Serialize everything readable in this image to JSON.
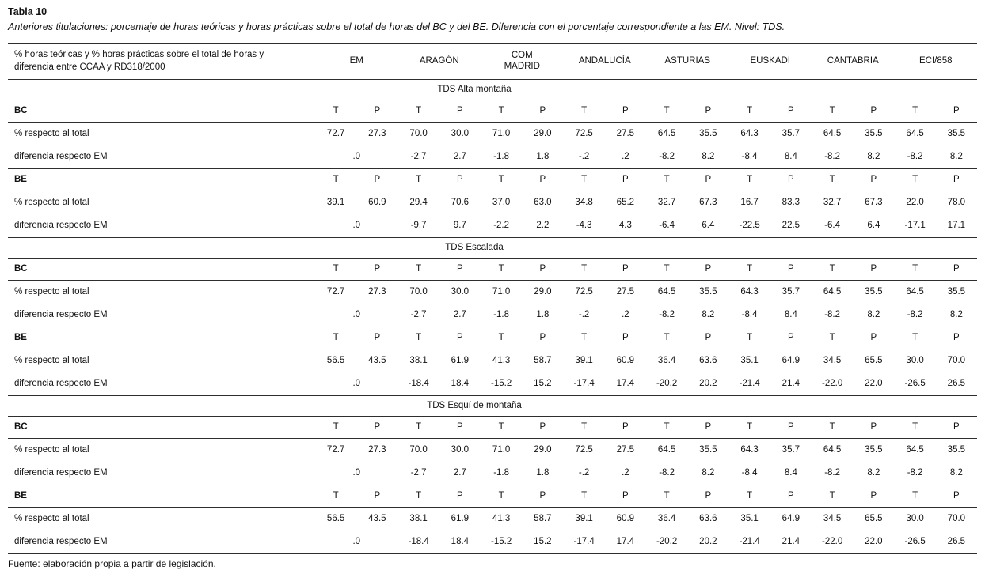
{
  "title": "Tabla 10",
  "subtitle": "Anteriores titulaciones: porcentaje de horas teóricas y horas prácticas sobre el total de horas del BC y del BE. Diferencia con el porcentaje correspondiente a las EM. Nivel: TDS.",
  "header": {
    "label_lines": [
      "% horas teóricas y % horas prácticas sobre el total de horas y",
      "diferencia entre CCAA y RD318/2000"
    ],
    "columns": [
      "EM",
      "ARAGÓN",
      "COM\nMADRID",
      "ANDALUCÍA",
      "ASTURIAS",
      "EUSKADI",
      "CANTABRIA",
      "ECI/858"
    ],
    "subcolumns": [
      "T",
      "P"
    ]
  },
  "row_labels": {
    "pct": "% respecto al total",
    "dif": "diferencia respecto EM"
  },
  "chart_data": {
    "type": "table",
    "sections": [
      {
        "title": "TDS Alta montaña",
        "blocks": [
          {
            "name": "BC",
            "pct": [
              "72.7",
              "27.3",
              "70.0",
              "30.0",
              "71.0",
              "29.0",
              "72.5",
              "27.5",
              "64.5",
              "35.5",
              "64.3",
              "35.7",
              "64.5",
              "35.5",
              "64.5",
              "35.5"
            ],
            "dif": [
              ".0",
              "-2.7",
              "2.7",
              "-1.8",
              "1.8",
              "-.2",
              ".2",
              "-8.2",
              "8.2",
              "-8.4",
              "8.4",
              "-8.2",
              "8.2",
              "-8.2",
              "8.2"
            ]
          },
          {
            "name": "BE",
            "pct": [
              "39.1",
              "60.9",
              "29.4",
              "70.6",
              "37.0",
              "63.0",
              "34.8",
              "65.2",
              "32.7",
              "67.3",
              "16.7",
              "83.3",
              "32.7",
              "67.3",
              "22.0",
              "78.0"
            ],
            "dif": [
              ".0",
              "-9.7",
              "9.7",
              "-2.2",
              "2.2",
              "-4.3",
              "4.3",
              "-6.4",
              "6.4",
              "-22.5",
              "22.5",
              "-6.4",
              "6.4",
              "-17.1",
              "17.1"
            ]
          }
        ]
      },
      {
        "title": "TDS Escalada",
        "blocks": [
          {
            "name": "BC",
            "pct": [
              "72.7",
              "27.3",
              "70.0",
              "30.0",
              "71.0",
              "29.0",
              "72.5",
              "27.5",
              "64.5",
              "35.5",
              "64.3",
              "35.7",
              "64.5",
              "35.5",
              "64.5",
              "35.5"
            ],
            "dif": [
              ".0",
              "-2.7",
              "2.7",
              "-1.8",
              "1.8",
              "-.2",
              ".2",
              "-8.2",
              "8.2",
              "-8.4",
              "8.4",
              "-8.2",
              "8.2",
              "-8.2",
              "8.2"
            ]
          },
          {
            "name": "BE",
            "pct": [
              "56.5",
              "43.5",
              "38.1",
              "61.9",
              "41.3",
              "58.7",
              "39.1",
              "60.9",
              "36.4",
              "63.6",
              "35.1",
              "64.9",
              "34.5",
              "65.5",
              "30.0",
              "70.0"
            ],
            "dif": [
              ".0",
              "-18.4",
              "18.4",
              "-15.2",
              "15.2",
              "-17.4",
              "17.4",
              "-20.2",
              "20.2",
              "-21.4",
              "21.4",
              "-22.0",
              "22.0",
              "-26.5",
              "26.5"
            ]
          }
        ]
      },
      {
        "title": "TDS Esquí de montaña",
        "blocks": [
          {
            "name": "BC",
            "pct": [
              "72.7",
              "27.3",
              "70.0",
              "30.0",
              "71.0",
              "29.0",
              "72.5",
              "27.5",
              "64.5",
              "35.5",
              "64.3",
              "35.7",
              "64.5",
              "35.5",
              "64.5",
              "35.5"
            ],
            "dif": [
              ".0",
              "-2.7",
              "2.7",
              "-1.8",
              "1.8",
              "-.2",
              ".2",
              "-8.2",
              "8.2",
              "-8.4",
              "8.4",
              "-8.2",
              "8.2",
              "-8.2",
              "8.2"
            ]
          },
          {
            "name": "BE",
            "pct": [
              "56.5",
              "43.5",
              "38.1",
              "61.9",
              "41.3",
              "58.7",
              "39.1",
              "60.9",
              "36.4",
              "63.6",
              "35.1",
              "64.9",
              "34.5",
              "65.5",
              "30.0",
              "70.0"
            ],
            "dif": [
              ".0",
              "-18.4",
              "18.4",
              "-15.2",
              "15.2",
              "-17.4",
              "17.4",
              "-20.2",
              "20.2",
              "-21.4",
              "21.4",
              "-22.0",
              "22.0",
              "-26.5",
              "26.5"
            ]
          }
        ]
      }
    ]
  },
  "footer": "Fuente: elaboración propia a partir de legislación."
}
